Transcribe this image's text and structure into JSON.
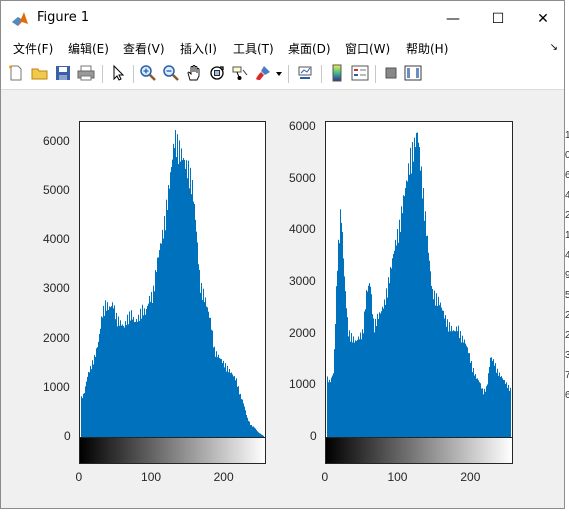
{
  "window": {
    "title": "Figure 1"
  },
  "title_buttons": {
    "minimize": "—",
    "maximize": "☐",
    "close": "✕"
  },
  "menu": [
    {
      "label": "文件(F)"
    },
    {
      "label": "编辑(E)"
    },
    {
      "label": "查看(V)"
    },
    {
      "label": "插入(I)"
    },
    {
      "label": "工具(T)"
    },
    {
      "label": "桌面(D)"
    },
    {
      "label": "窗口(W)"
    },
    {
      "label": "帮助(H)"
    }
  ],
  "toolbar": {
    "icons": [
      "new-figure-icon",
      "open-icon",
      "save-icon",
      "print-icon",
      "select-arrow-icon",
      "zoom-in-icon",
      "zoom-out-icon",
      "pan-icon",
      "rotate-3d-icon",
      "data-cursor-icon",
      "brush-icon",
      "brush-dropdown-icon",
      "link-plot-icon",
      "colorbar-icon",
      "legend-icon",
      "hide-plot-tools-icon",
      "show-plot-tools-icon"
    ]
  },
  "colors": {
    "bar": "#0072BD",
    "axes": "#262626",
    "figure_bg": "#f0f0f0"
  },
  "right_strip_chars": [
    "1",
    "0",
    "6",
    "4",
    "2",
    "1",
    "4",
    "9",
    "5",
    "2",
    "2",
    "3",
    "7",
    "6"
  ],
  "chart_data": [
    {
      "type": "bar",
      "xlim": [
        0,
        255
      ],
      "ylim": [
        0,
        6400
      ],
      "yticks": [
        "0",
        "1000",
        "2000",
        "3000",
        "4000",
        "5000",
        "6000"
      ],
      "xticks": [
        "0",
        "100",
        "200"
      ],
      "colorbar": "gray",
      "x": [
        0,
        5,
        10,
        15,
        20,
        25,
        30,
        35,
        40,
        45,
        50,
        55,
        60,
        65,
        70,
        75,
        80,
        85,
        90,
        95,
        100,
        105,
        110,
        115,
        120,
        125,
        130,
        135,
        140,
        145,
        150,
        155,
        160,
        165,
        170,
        175,
        180,
        185,
        190,
        195,
        200,
        205,
        210,
        215,
        220,
        225,
        230,
        235,
        240,
        245,
        250,
        255
      ],
      "values": [
        800,
        900,
        1300,
        1500,
        1700,
        2000,
        2600,
        2800,
        2700,
        2800,
        2500,
        2400,
        2300,
        2500,
        2600,
        2400,
        2500,
        2700,
        2600,
        2900,
        3000,
        3600,
        4000,
        4400,
        5000,
        5600,
        6300,
        6100,
        5900,
        5700,
        5600,
        5200,
        4300,
        3200,
        3000,
        2700,
        2400,
        1800,
        1700,
        1600,
        1500,
        1400,
        1300,
        1200,
        900,
        700,
        400,
        250,
        200,
        100,
        50,
        0
      ]
    },
    {
      "type": "bar",
      "xlim": [
        0,
        255
      ],
      "ylim": [
        0,
        6100
      ],
      "yticks": [
        "0",
        "1000",
        "2000",
        "3000",
        "4000",
        "5000",
        "6000"
      ],
      "xticks": [
        "0",
        "100",
        "200"
      ],
      "colorbar": "gray",
      "x": [
        0,
        5,
        10,
        15,
        20,
        25,
        30,
        35,
        40,
        45,
        50,
        55,
        60,
        65,
        70,
        75,
        80,
        85,
        90,
        95,
        100,
        105,
        110,
        115,
        120,
        125,
        130,
        135,
        140,
        145,
        150,
        155,
        160,
        165,
        170,
        175,
        180,
        185,
        190,
        195,
        200,
        205,
        210,
        215,
        220,
        225,
        230,
        235,
        240,
        245,
        250,
        255
      ],
      "values": [
        1200,
        1100,
        1300,
        3500,
        4600,
        3100,
        2100,
        2000,
        1900,
        2000,
        2100,
        2900,
        3100,
        2200,
        2400,
        2500,
        2700,
        3100,
        3500,
        3900,
        4200,
        4700,
        5100,
        5600,
        5800,
        6100,
        5300,
        4500,
        3700,
        2900,
        2800,
        2700,
        2500,
        2300,
        2200,
        2100,
        2200,
        2000,
        1900,
        1700,
        1400,
        1200,
        1100,
        900,
        1000,
        1600,
        1500,
        1300,
        1200,
        1100,
        1000,
        900
      ]
    }
  ]
}
